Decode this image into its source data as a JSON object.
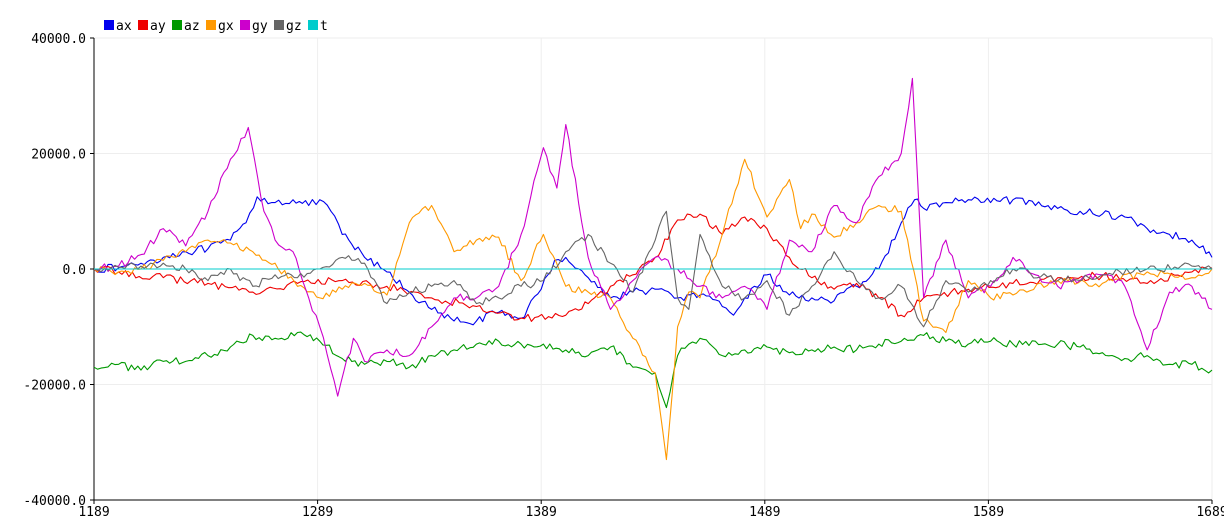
{
  "chart_data": {
    "type": "line",
    "title": "",
    "xlabel": "",
    "ylabel": "",
    "xlim": [
      1189,
      1689
    ],
    "ylim": [
      -40000,
      40000
    ],
    "grid": true,
    "legend_position": "top-left",
    "x_ticks": [
      1189,
      1289,
      1389,
      1489,
      1589,
      1689
    ],
    "x_tick_labels": [
      "1189",
      "1289",
      "1389",
      "1489",
      "1589",
      "1689"
    ],
    "y_ticks": [
      -40000,
      -20000,
      0,
      20000,
      40000
    ],
    "y_tick_labels": [
      "-40000.0",
      "-20000.0",
      "0.0",
      "20000.0",
      "40000.0"
    ],
    "series": [
      {
        "name": "ax",
        "color": "#0000ee",
        "x": [
          1189,
          1200,
          1210,
          1220,
          1230,
          1240,
          1250,
          1257,
          1262,
          1270,
          1278,
          1285,
          1290,
          1295,
          1300,
          1310,
          1320,
          1330,
          1340,
          1350,
          1360,
          1370,
          1380,
          1389,
          1395,
          1400,
          1410,
          1420,
          1430,
          1440,
          1450,
          1460,
          1470,
          1475,
          1480,
          1490,
          1500,
          1510,
          1520,
          1530,
          1540,
          1550,
          1556,
          1560,
          1570,
          1580,
          1590,
          1600,
          1610,
          1620,
          1630,
          1640,
          1650,
          1660,
          1670,
          1680,
          1685,
          1689
        ],
        "values": [
          0,
          200,
          1000,
          2000,
          3000,
          3500,
          5000,
          8000,
          12500,
          11500,
          12000,
          11000,
          12000,
          10000,
          6000,
          2000,
          -500,
          -4000,
          -7000,
          -9000,
          -9000,
          -7500,
          -8500,
          -3500,
          1500,
          2000,
          -1500,
          -5000,
          -4000,
          -3500,
          -5000,
          -4500,
          -6500,
          -8000,
          -5000,
          -1000,
          -4500,
          -5000,
          -5500,
          -3000,
          0,
          8000,
          12000,
          10500,
          11500,
          12000,
          11500,
          12000,
          11000,
          10500,
          10000,
          9500,
          9000,
          7000,
          6000,
          5000,
          4000,
          2000
        ]
      },
      {
        "name": "ay",
        "color": "#ee0000",
        "x": [
          1189,
          1200,
          1220,
          1240,
          1260,
          1280,
          1300,
          1320,
          1340,
          1360,
          1380,
          1400,
          1410,
          1420,
          1430,
          1440,
          1450,
          1460,
          1470,
          1480,
          1490,
          1500,
          1510,
          1520,
          1530,
          1540,
          1550,
          1560,
          1580,
          1600,
          1620,
          1640,
          1660,
          1680,
          1689
        ],
        "values": [
          0,
          -500,
          -1500,
          -2500,
          -4000,
          -2500,
          -2000,
          -3000,
          -5000,
          -6500,
          -8500,
          -8000,
          -6000,
          -3000,
          -1000,
          2000,
          8500,
          9500,
          6000,
          9000,
          7000,
          2000,
          -1500,
          -3500,
          -2500,
          -5000,
          -8000,
          -5000,
          -3500,
          -2500,
          -1500,
          -1200,
          -2500,
          -500,
          200
        ]
      },
      {
        "name": "az",
        "color": "#009900",
        "x": [
          1189,
          1200,
          1210,
          1220,
          1230,
          1240,
          1250,
          1260,
          1270,
          1280,
          1290,
          1300,
          1310,
          1320,
          1330,
          1340,
          1350,
          1360,
          1370,
          1380,
          1390,
          1400,
          1410,
          1420,
          1430,
          1440,
          1445,
          1450,
          1455,
          1460,
          1470,
          1480,
          1490,
          1500,
          1510,
          1520,
          1530,
          1540,
          1550,
          1560,
          1570,
          1580,
          1590,
          1600,
          1610,
          1620,
          1630,
          1640,
          1650,
          1660,
          1670,
          1680,
          1689
        ],
        "values": [
          -17000,
          -16500,
          -17500,
          -16000,
          -16000,
          -15000,
          -13500,
          -11500,
          -12000,
          -11000,
          -12500,
          -15500,
          -16500,
          -16000,
          -17000,
          -15000,
          -14000,
          -13000,
          -12500,
          -13000,
          -13000,
          -14000,
          -15000,
          -13500,
          -17000,
          -18000,
          -24000,
          -15000,
          -13000,
          -12000,
          -15000,
          -14000,
          -13500,
          -14500,
          -14000,
          -13500,
          -14000,
          -13000,
          -12500,
          -11500,
          -12500,
          -13000,
          -12500,
          -13000,
          -12500,
          -13000,
          -13500,
          -14500,
          -15500,
          -15000,
          -16500,
          -16500,
          -17500
        ]
      },
      {
        "name": "gx",
        "color": "#ff9900",
        "x": [
          1189,
          1200,
          1210,
          1220,
          1230,
          1240,
          1250,
          1260,
          1270,
          1280,
          1290,
          1300,
          1310,
          1320,
          1330,
          1340,
          1350,
          1360,
          1370,
          1380,
          1390,
          1400,
          1410,
          1420,
          1430,
          1440,
          1445,
          1450,
          1455,
          1460,
          1470,
          1480,
          1490,
          1500,
          1505,
          1510,
          1520,
          1530,
          1540,
          1550,
          1560,
          1570,
          1580,
          1590,
          1600,
          1620,
          1640,
          1660,
          1680,
          1689
        ],
        "values": [
          0,
          -500,
          0,
          1500,
          3000,
          5000,
          4500,
          3000,
          1000,
          -3000,
          -5000,
          -3500,
          -2500,
          -4500,
          8000,
          11000,
          3000,
          5000,
          5500,
          -2000,
          6000,
          -3000,
          -4000,
          -5000,
          -12000,
          -18000,
          -33000,
          -10000,
          -4000,
          -5000,
          6000,
          19000,
          9000,
          15500,
          7000,
          9500,
          5500,
          8000,
          11000,
          10000,
          -9000,
          -11000,
          -2000,
          -5000,
          -4500,
          -2000,
          -2500,
          -500,
          -1500,
          0
        ]
      },
      {
        "name": "gy",
        "color": "#cc00cc",
        "x": [
          1189,
          1200,
          1210,
          1220,
          1230,
          1240,
          1250,
          1258,
          1265,
          1270,
          1278,
          1285,
          1290,
          1298,
          1305,
          1310,
          1320,
          1330,
          1340,
          1350,
          1360,
          1370,
          1380,
          1390,
          1396,
          1400,
          1410,
          1420,
          1430,
          1440,
          1450,
          1460,
          1470,
          1480,
          1490,
          1500,
          1510,
          1520,
          1530,
          1540,
          1550,
          1555,
          1560,
          1570,
          1580,
          1590,
          1600,
          1610,
          1620,
          1630,
          1640,
          1650,
          1660,
          1670,
          1680,
          1689
        ],
        "values": [
          0,
          500,
          2500,
          7000,
          4000,
          10000,
          19000,
          24500,
          10000,
          5000,
          3000,
          -5000,
          -10000,
          -22000,
          -12000,
          -16000,
          -14000,
          -15000,
          -10000,
          -5000,
          -5000,
          -3000,
          6000,
          21000,
          14000,
          25000,
          2000,
          -7000,
          -2000,
          2000,
          0,
          -3000,
          -5000,
          -3000,
          -7000,
          5000,
          3000,
          11000,
          8000,
          16000,
          20000,
          33000,
          -5000,
          5000,
          -5000,
          -3000,
          2000,
          -1000,
          -3000,
          -2000,
          -1000,
          -3000,
          -14000,
          -4000,
          -3000,
          -7000
        ]
      },
      {
        "name": "gz",
        "color": "#666666",
        "x": [
          1189,
          1200,
          1210,
          1220,
          1230,
          1240,
          1250,
          1260,
          1270,
          1280,
          1290,
          1300,
          1310,
          1320,
          1330,
          1340,
          1350,
          1360,
          1370,
          1380,
          1390,
          1400,
          1410,
          1420,
          1430,
          1440,
          1445,
          1450,
          1455,
          1460,
          1470,
          1480,
          1490,
          1500,
          1510,
          1520,
          1530,
          1540,
          1550,
          1560,
          1570,
          1580,
          1590,
          1600,
          1620,
          1640,
          1660,
          1680,
          1689
        ],
        "values": [
          0,
          300,
          500,
          1000,
          0,
          -2000,
          0,
          -3000,
          -1000,
          -1500,
          0,
          2000,
          1000,
          -6000,
          -4000,
          -3000,
          -2000,
          -6000,
          -5000,
          -3000,
          -2000,
          3000,
          6000,
          1000,
          -4000,
          5000,
          10000,
          -5000,
          -7000,
          6000,
          -3000,
          -5000,
          -2000,
          -8000,
          -3000,
          3000,
          -2000,
          -5000,
          -3000,
          -10000,
          -2000,
          -4000,
          -2000,
          0,
          -2000,
          -1000,
          0,
          500,
          0
        ]
      },
      {
        "name": "t",
        "color": "#00cccc",
        "x": [
          1189,
          1689
        ],
        "values": [
          0,
          0
        ]
      }
    ]
  }
}
